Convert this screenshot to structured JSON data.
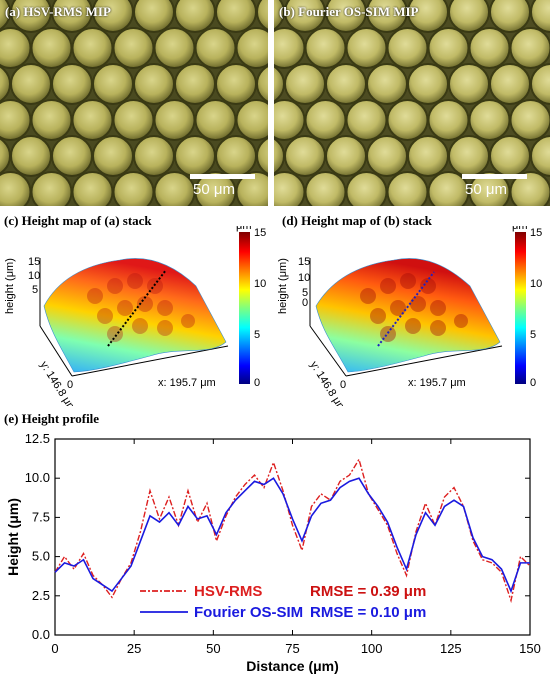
{
  "panels": {
    "a": {
      "label": "(a) HSV-RMS MIP",
      "scalebar": "50 μm"
    },
    "b": {
      "label": "(b) Fourier OS-SIM MIP",
      "scalebar": "50 μm"
    },
    "c": {
      "title": "(c) Height map of (a) stack",
      "unit": "μm",
      "zlabel": "height (μm)",
      "ylabel": "y: 146.8 μm",
      "xlabel": "x: 195.7 μm",
      "zero": "0",
      "zticks": [
        "15",
        "10",
        "5"
      ],
      "cbar_ticks": [
        "15",
        "10",
        "5",
        "0"
      ]
    },
    "d": {
      "title": "(d) Height map of (b) stack",
      "unit": "μm",
      "zlabel": "height (μm)",
      "ylabel": "y: 146.8 μm",
      "xlabel": "x: 195.7 μm",
      "zero": "0",
      "zticks": [
        "15",
        "10",
        "5",
        "0"
      ],
      "cbar_ticks": [
        "15",
        "10",
        "5",
        "0"
      ]
    },
    "e": {
      "title": "(e) Height profile"
    }
  },
  "colors": {
    "hsv": "#dd2020",
    "fourier": "#1a1adf",
    "rmse_red": "#cc1111",
    "rmse_blue": "#1a1adf"
  },
  "chart_data": {
    "type": "line",
    "xlabel": "Distance (μm)",
    "ylabel": "Height (μm)",
    "xlim": [
      0,
      150
    ],
    "ylim": [
      0,
      12.5
    ],
    "xticks": [
      0,
      25,
      50,
      75,
      100,
      125,
      150
    ],
    "yticks": [
      0.0,
      2.5,
      5.0,
      7.5,
      10.0,
      12.5
    ],
    "grid": false,
    "legend_position": "bottom-left",
    "series": [
      {
        "name": "HSV-RMS",
        "style": "dash-dot",
        "annotation": "RMSE = 0.39 μm",
        "x": [
          0,
          3,
          6,
          9,
          12,
          15,
          18,
          21,
          24,
          27,
          30,
          33,
          36,
          39,
          42,
          45,
          48,
          51,
          54,
          57,
          60,
          63,
          66,
          69,
          72,
          75,
          78,
          81,
          84,
          87,
          90,
          93,
          96,
          99,
          102,
          105,
          108,
          111,
          114,
          117,
          120,
          123,
          126,
          129,
          132,
          135,
          138,
          141,
          144,
          147,
          150
        ],
        "y": [
          4.0,
          5.0,
          4.2,
          5.2,
          3.8,
          3.2,
          2.4,
          3.6,
          4.6,
          6.6,
          9.2,
          7.4,
          8.8,
          7.0,
          9.2,
          7.2,
          8.4,
          6.0,
          7.6,
          8.8,
          9.6,
          10.2,
          9.4,
          11.0,
          9.2,
          7.0,
          5.4,
          8.2,
          9.0,
          8.6,
          9.8,
          10.2,
          11.2,
          9.0,
          8.0,
          7.0,
          5.2,
          3.8,
          6.6,
          8.4,
          7.0,
          8.8,
          9.4,
          8.2,
          6.0,
          4.8,
          4.6,
          4.0,
          2.2,
          5.0,
          4.4
        ]
      },
      {
        "name": "Fourier OS-SIM",
        "style": "solid",
        "annotation": "RMSE = 0.10 μm",
        "x": [
          0,
          3,
          6,
          9,
          12,
          15,
          18,
          21,
          24,
          27,
          30,
          33,
          36,
          39,
          42,
          45,
          48,
          51,
          54,
          57,
          60,
          63,
          66,
          69,
          72,
          75,
          78,
          81,
          84,
          87,
          90,
          93,
          96,
          99,
          102,
          105,
          108,
          111,
          114,
          117,
          120,
          123,
          126,
          129,
          132,
          135,
          138,
          141,
          144,
          147,
          150
        ],
        "y": [
          4.0,
          4.6,
          4.4,
          4.8,
          3.6,
          3.2,
          2.8,
          3.6,
          4.4,
          6.0,
          7.6,
          7.2,
          7.8,
          7.0,
          8.2,
          7.4,
          7.6,
          6.4,
          7.8,
          8.6,
          9.2,
          9.8,
          9.6,
          10.0,
          9.0,
          7.4,
          6.0,
          7.6,
          8.4,
          8.6,
          9.4,
          9.8,
          10.0,
          9.0,
          8.2,
          7.2,
          5.6,
          4.2,
          6.4,
          7.8,
          7.0,
          8.2,
          8.6,
          8.2,
          6.2,
          5.0,
          4.8,
          4.2,
          2.8,
          4.6,
          4.6
        ]
      }
    ]
  }
}
